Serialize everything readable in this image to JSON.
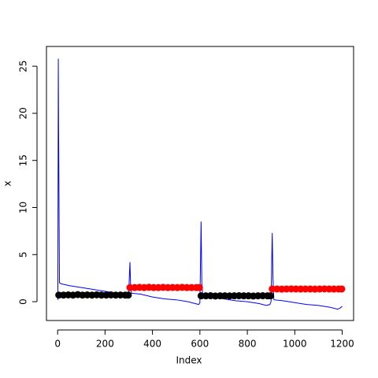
{
  "chart_data": {
    "type": "line",
    "xlabel": "Index",
    "ylabel": "x",
    "xlim": [
      -47,
      1248
    ],
    "ylim": [
      -2.0,
      27.1
    ],
    "xticks": [
      0,
      200,
      400,
      600,
      800,
      1000,
      1200
    ],
    "yticks": [
      0,
      5,
      10,
      15,
      20,
      25
    ],
    "line": {
      "color": "#0000ff",
      "x": [
        1,
        3,
        4,
        6,
        8,
        15,
        50,
        100,
        150,
        200,
        250,
        295,
        300,
        303,
        305,
        308,
        312,
        350,
        400,
        450,
        500,
        550,
        580,
        595,
        600,
        603,
        605,
        608,
        612,
        650,
        700,
        750,
        800,
        850,
        880,
        895,
        900,
        903,
        905,
        908,
        912,
        950,
        1000,
        1050,
        1100,
        1150,
        1180,
        1190,
        1200
      ],
      "values": [
        0.2,
        25.8,
        19.5,
        10.0,
        2.0,
        1.9,
        1.7,
        1.5,
        1.3,
        1.1,
        0.9,
        0.8,
        0.9,
        3.0,
        4.2,
        1.5,
        0.9,
        0.8,
        0.5,
        0.3,
        0.2,
        0.0,
        -0.2,
        -0.3,
        -0.1,
        5.0,
        8.5,
        2.0,
        0.6,
        0.5,
        0.3,
        0.1,
        0.0,
        -0.2,
        -0.4,
        -0.3,
        0.0,
        4.5,
        7.3,
        2.5,
        0.2,
        0.1,
        -0.1,
        -0.3,
        -0.4,
        -0.6,
        -0.8,
        -0.7,
        -0.5
      ]
    },
    "points": [
      {
        "color": "#000000",
        "x": [
          5,
          25,
          45,
          65,
          85,
          105,
          125,
          145,
          165,
          185,
          205,
          225,
          245,
          265,
          285,
          298
        ],
        "values": [
          0.7,
          0.7,
          0.72,
          0.7,
          0.75,
          0.7,
          0.72,
          0.7,
          0.73,
          0.7,
          0.7,
          0.72,
          0.7,
          0.71,
          0.7,
          0.7
        ]
      },
      {
        "color": "#ff0000",
        "x": [
          305,
          325,
          345,
          365,
          385,
          405,
          425,
          445,
          465,
          485,
          505,
          525,
          545,
          565,
          585,
          598
        ],
        "values": [
          1.5,
          1.5,
          1.52,
          1.5,
          1.53,
          1.5,
          1.5,
          1.52,
          1.5,
          1.51,
          1.5,
          1.52,
          1.5,
          1.5,
          1.5,
          1.5
        ]
      },
      {
        "color": "#000000",
        "x": [
          605,
          625,
          645,
          665,
          685,
          705,
          725,
          745,
          765,
          785,
          805,
          825,
          845,
          865,
          885,
          898
        ],
        "values": [
          0.62,
          0.62,
          0.63,
          0.6,
          0.62,
          0.62,
          0.61,
          0.62,
          0.63,
          0.62,
          0.62,
          0.6,
          0.62,
          0.63,
          0.62,
          0.62
        ]
      },
      {
        "color": "#ff0000",
        "x": [
          905,
          925,
          945,
          965,
          985,
          1005,
          1025,
          1045,
          1065,
          1085,
          1105,
          1125,
          1145,
          1165,
          1185,
          1198
        ],
        "values": [
          1.35,
          1.35,
          1.33,
          1.35,
          1.36,
          1.35,
          1.34,
          1.35,
          1.35,
          1.33,
          1.35,
          1.36,
          1.35,
          1.34,
          1.35,
          1.35
        ]
      }
    ]
  }
}
